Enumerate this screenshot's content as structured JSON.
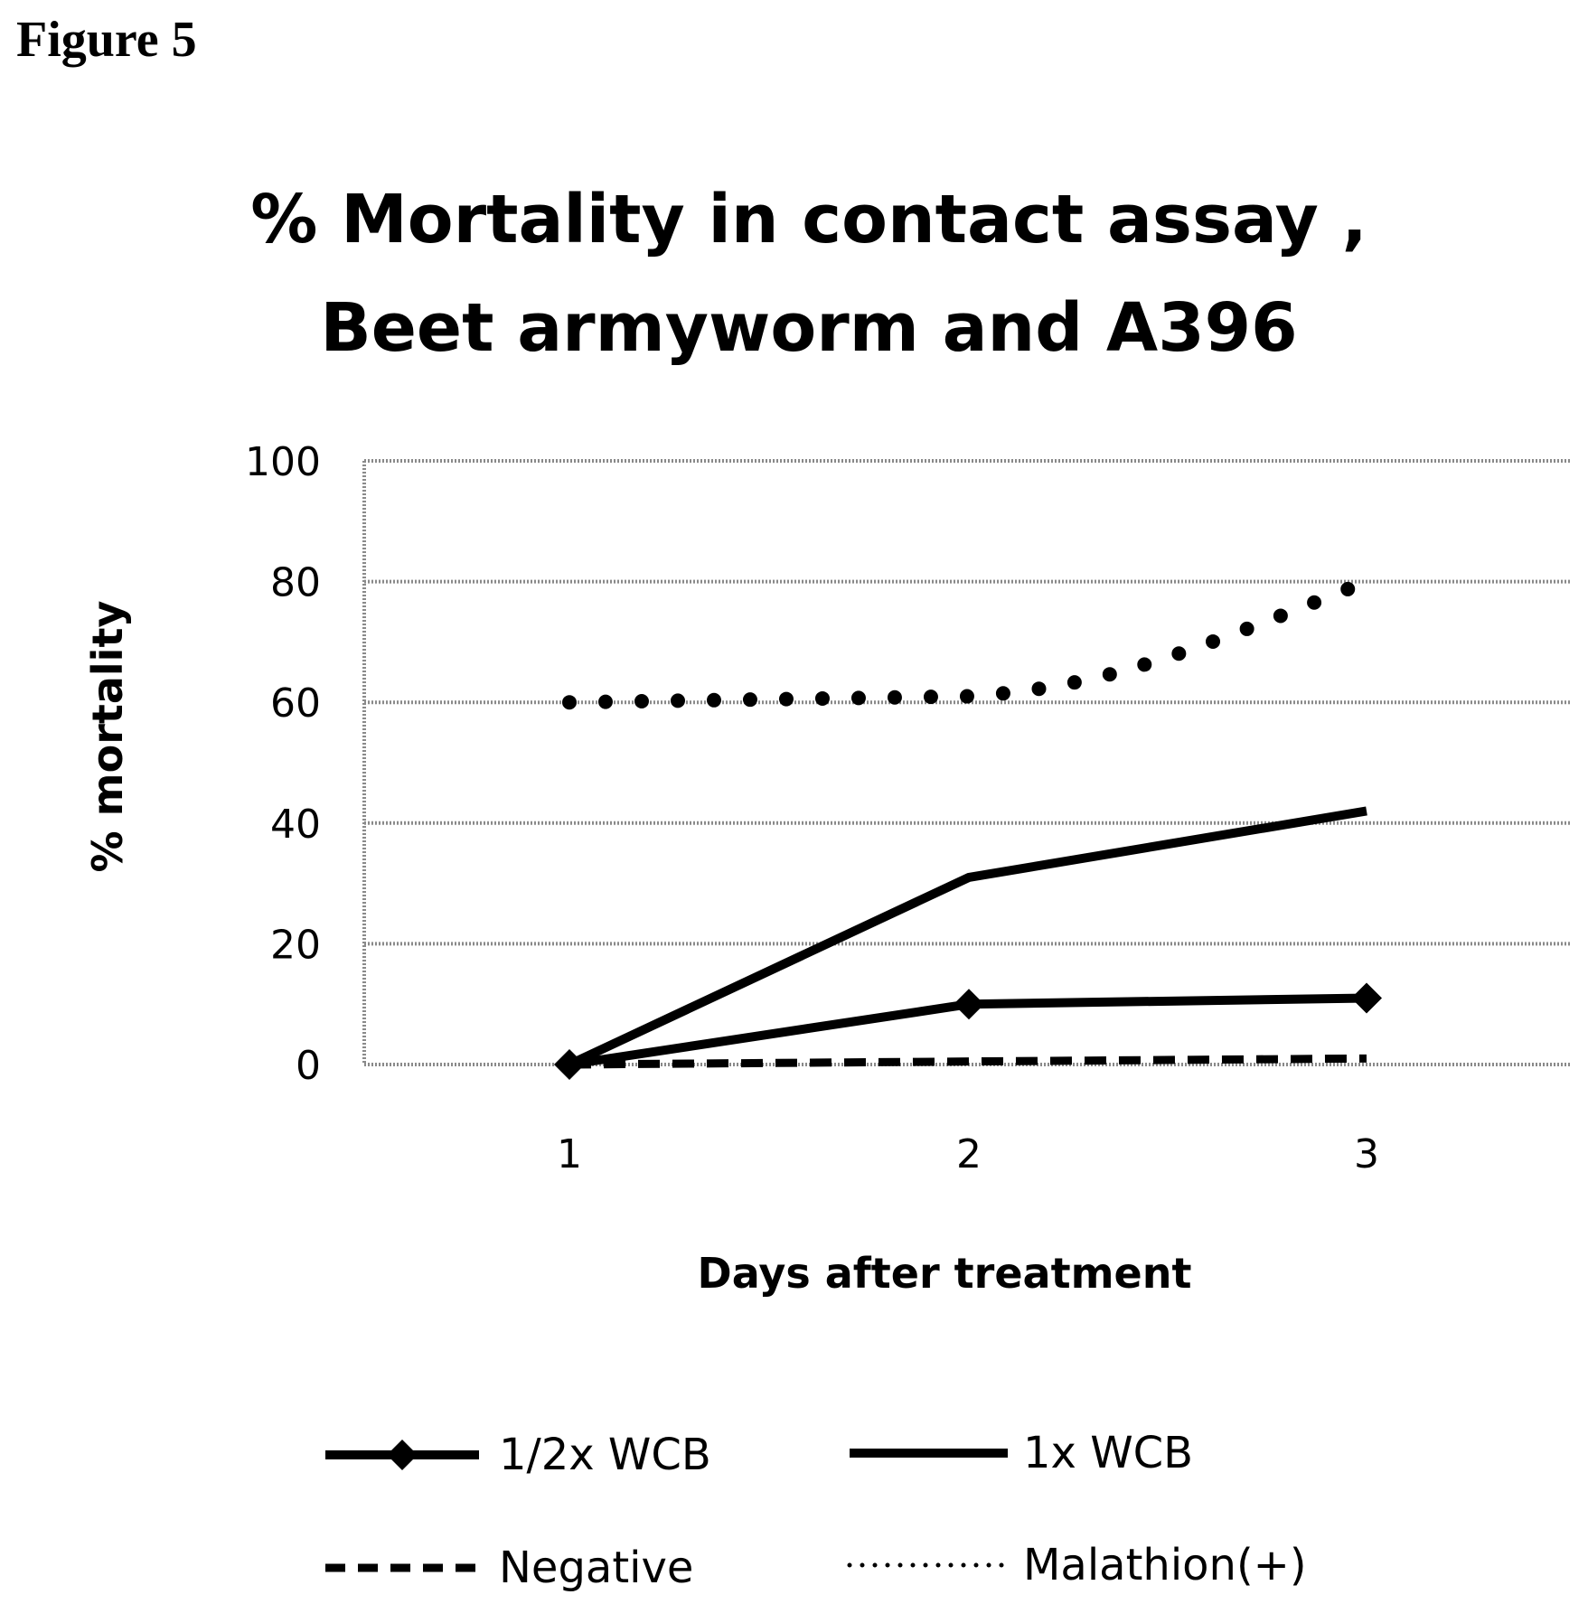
{
  "figure_label": "Figure 5",
  "chart_data": {
    "type": "line",
    "title_lines": [
      "% Mortality in contact assay ,",
      "Beet armyworm and A396"
    ],
    "xlabel": "Days after treatment",
    "ylabel": "% mortality",
    "categories": [
      "1",
      "2",
      "3"
    ],
    "ylim": [
      0,
      100
    ],
    "yticks": [
      0,
      20,
      40,
      60,
      80,
      100
    ],
    "grid": true,
    "legend_position": "bottom",
    "series": [
      {
        "name": "1/2x WCB",
        "values": [
          0,
          10,
          11
        ],
        "style": "solid-diamond",
        "color": "#000000"
      },
      {
        "name": "1x WCB",
        "values": [
          0,
          31,
          42
        ],
        "style": "solid",
        "color": "#000000"
      },
      {
        "name": "Negative",
        "values": [
          0,
          0.5,
          1
        ],
        "style": "dashed",
        "color": "#000000"
      },
      {
        "name": "Malathion(+)",
        "values": [
          60,
          61,
          80
        ],
        "style": "dotted",
        "color": "#000000"
      }
    ]
  }
}
